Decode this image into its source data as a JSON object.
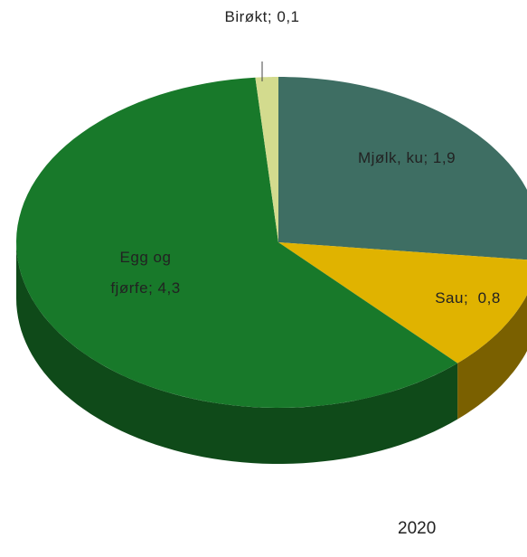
{
  "chart_data": {
    "type": "pie",
    "categories": [
      "Mjølk, ku",
      "Sau",
      "Egg og fjørfe",
      "Birøkt"
    ],
    "values": [
      1.9,
      0.8,
      4.3,
      0.1
    ],
    "value_labels": [
      "1,9",
      "0,8",
      "4,3",
      "0,1"
    ],
    "label_separator": ";",
    "colors": [
      "#3e6e63",
      "#e0b300",
      "#18792a",
      "#d3db8e"
    ],
    "side_colors": [
      "#2a4d45",
      "#7a6000",
      "#0f4a19",
      "#8f9660"
    ],
    "annotation": "2020"
  }
}
